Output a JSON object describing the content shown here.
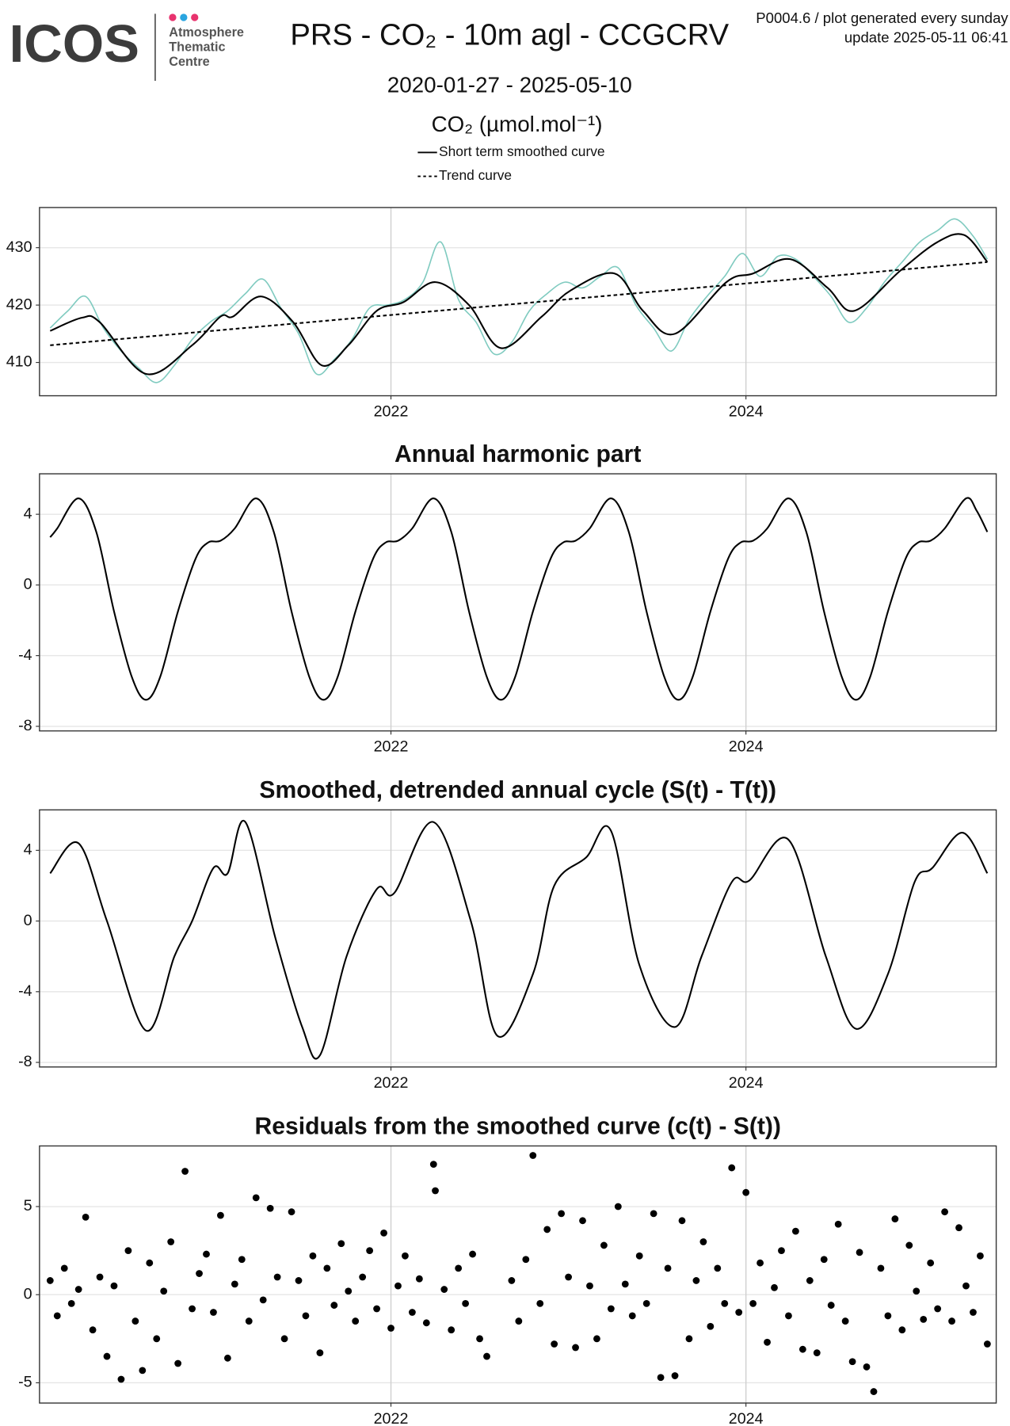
{
  "header": {
    "logo": "ICOS",
    "logo_lines": [
      "Atmosphere",
      "Thematic",
      "Centre"
    ],
    "title": "PRS - CO₂ - 10m agl - CCGCRV",
    "note": "P0004.6 / plot generated every sunday",
    "update": "update  2025-05-11 06:41",
    "period": "2020-01-27 - 2025-05-10",
    "unit": "CO₂ (µmol.mol⁻¹)"
  },
  "chart_data": [
    {
      "type": "line",
      "xlim": [
        2020.02,
        2025.41
      ],
      "xticks": [
        2022,
        2024
      ],
      "ylim": [
        404.2,
        437.0
      ],
      "yticks": [
        410,
        420,
        430
      ],
      "grid": true,
      "series": [
        {
          "color": "#80cbc0",
          "x": [
            2020.08,
            2020.18,
            2020.28,
            2020.38,
            2020.48,
            2020.58,
            2020.68,
            2020.78,
            2020.88,
            2020.98,
            2021.08,
            2021.18,
            2021.28,
            2021.38,
            2021.48,
            2021.58,
            2021.68,
            2021.78,
            2021.88,
            2021.98,
            2022.08,
            2022.18,
            2022.28,
            2022.38,
            2022.48,
            2022.58,
            2022.68,
            2022.78,
            2022.88,
            2022.98,
            2023.08,
            2023.18,
            2023.28,
            2023.38,
            2023.48,
            2023.58,
            2023.68,
            2023.78,
            2023.88,
            2023.98,
            2024.08,
            2024.18,
            2024.28,
            2024.38,
            2024.48,
            2024.58,
            2024.68,
            2024.78,
            2024.88,
            2024.98,
            2025.08,
            2025.18,
            2025.28,
            2025.36
          ],
          "values": [
            416,
            419,
            421.5,
            416,
            412,
            409,
            406.5,
            409.5,
            414,
            417,
            419,
            422,
            424.5,
            419.5,
            415,
            408,
            410.5,
            414,
            419.5,
            420,
            421,
            424,
            431,
            421,
            417,
            411.5,
            413.5,
            419,
            422,
            424,
            423,
            425,
            426.5,
            420,
            416,
            412,
            417.5,
            421.5,
            425,
            429,
            425,
            428.5,
            428,
            425,
            421.5,
            417,
            419.5,
            424,
            427.5,
            431,
            433,
            435,
            432,
            428
          ]
        },
        {
          "name": "Short term smoothed curve",
          "color": "#000000",
          "x": [
            2020.08,
            2020.26,
            2020.36,
            2020.62,
            2020.88,
            2021.04,
            2021.11,
            2021.27,
            2021.45,
            2021.61,
            2021.76,
            2021.92,
            2022.07,
            2022.25,
            2022.44,
            2022.62,
            2022.85,
            2023.01,
            2023.26,
            2023.42,
            2023.6,
            2023.89,
            2024.04,
            2024.25,
            2024.46,
            2024.61,
            2024.87,
            2025.08,
            2025.23,
            2025.36
          ],
          "values": [
            415.5,
            417.8,
            417,
            408,
            413,
            418,
            418,
            421.5,
            417,
            409.5,
            413,
            419,
            420.5,
            424,
            420,
            412.5,
            418,
            422.5,
            425.5,
            419,
            415,
            424,
            425.5,
            428,
            423,
            419,
            426,
            431,
            432.2,
            427.5
          ]
        },
        {
          "name": "Trend curve",
          "color": "#000000",
          "dash": true,
          "x": [
            2020.08,
            2025.36
          ],
          "values": [
            413,
            427.5
          ]
        }
      ]
    },
    {
      "type": "line",
      "title": "Annual harmonic part",
      "xlim": [
        2020.02,
        2025.41
      ],
      "xticks": [
        2022,
        2024
      ],
      "ylim": [
        -8.26,
        6.29
      ],
      "yticks": [
        -8,
        -4,
        0,
        4
      ],
      "grid": true,
      "series": [
        {
          "color": "#000000",
          "x": [
            2020.08,
            2020.12,
            2020.24,
            2020.34,
            2020.44,
            2020.54,
            2020.62,
            2020.7,
            2020.8,
            2020.9,
            2020.97,
            2021.04,
            2021.12,
            2021.24,
            2021.34,
            2021.44,
            2021.54,
            2021.62,
            2021.7,
            2021.8,
            2021.9,
            2021.97,
            2022.04,
            2022.12,
            2022.24,
            2022.34,
            2022.44,
            2022.54,
            2022.62,
            2022.7,
            2022.8,
            2022.9,
            2022.97,
            2023.04,
            2023.12,
            2023.24,
            2023.34,
            2023.44,
            2023.54,
            2023.62,
            2023.7,
            2023.8,
            2023.9,
            2023.97,
            2024.04,
            2024.12,
            2024.24,
            2024.34,
            2024.44,
            2024.54,
            2024.62,
            2024.7,
            2024.8,
            2024.9,
            2024.97,
            2025.04,
            2025.12,
            2025.24,
            2025.3,
            2025.36
          ],
          "values": [
            2.7,
            3.2,
            4.9,
            3.0,
            -1.5,
            -5.2,
            -6.5,
            -5.2,
            -1.5,
            1.5,
            2.4,
            2.5,
            3.2,
            4.9,
            3.0,
            -1.5,
            -5.2,
            -6.5,
            -5.2,
            -1.5,
            1.5,
            2.4,
            2.5,
            3.2,
            4.9,
            3.0,
            -1.5,
            -5.2,
            -6.5,
            -5.2,
            -1.5,
            1.5,
            2.4,
            2.5,
            3.2,
            4.9,
            3.0,
            -1.5,
            -5.2,
            -6.5,
            -5.2,
            -1.5,
            1.5,
            2.4,
            2.5,
            3.2,
            4.9,
            3.0,
            -1.5,
            -5.2,
            -6.5,
            -5.2,
            -1.5,
            1.5,
            2.4,
            2.5,
            3.2,
            4.9,
            4.2,
            3.0
          ]
        }
      ]
    },
    {
      "type": "line",
      "title": "Smoothed, detrended annual cycle (S(t) - T(t))",
      "xlim": [
        2020.02,
        2025.41
      ],
      "xticks": [
        2022,
        2024
      ],
      "ylim": [
        -8.26,
        6.29
      ],
      "yticks": [
        -8,
        -4,
        0,
        4
      ],
      "grid": true,
      "series": [
        {
          "color": "#000000",
          "x": [
            2020.08,
            2020.24,
            2020.4,
            2020.62,
            2020.78,
            2020.88,
            2021.0,
            2021.08,
            2021.18,
            2021.35,
            2021.5,
            2021.6,
            2021.75,
            2021.92,
            2022.02,
            2022.24,
            2022.45,
            2022.6,
            2022.8,
            2022.92,
            2023.1,
            2023.24,
            2023.4,
            2023.6,
            2023.75,
            2023.92,
            2024.02,
            2024.24,
            2024.45,
            2024.62,
            2024.8,
            2024.95,
            2025.05,
            2025.22,
            2025.36
          ],
          "values": [
            2.7,
            4.4,
            0,
            -6.2,
            -2,
            0,
            3,
            2.7,
            5.6,
            -1,
            -6,
            -7.6,
            -2,
            1.8,
            1.6,
            5.6,
            0,
            -6.5,
            -3,
            2,
            3.6,
            5.1,
            -2.5,
            -6,
            -2,
            2.2,
            2.3,
            4.6,
            -2,
            -6.1,
            -3,
            2.2,
            3,
            5,
            2.7
          ]
        }
      ]
    },
    {
      "type": "scatter",
      "title": "Residuals from the smoothed curve (c(t) - S(t))",
      "xlim": [
        2020.02,
        2025.41
      ],
      "xticks": [
        2022,
        2024
      ],
      "ylim": [
        -6.15,
        8.44
      ],
      "yticks": [
        -5,
        0,
        5
      ],
      "grid": true,
      "series": [
        {
          "color": "#000000",
          "x": [
            2020.08,
            2020.12,
            2020.16,
            2020.2,
            2020.24,
            2020.28,
            2020.32,
            2020.36,
            2020.4,
            2020.44,
            2020.48,
            2020.52,
            2020.56,
            2020.6,
            2020.64,
            2020.68,
            2020.72,
            2020.76,
            2020.8,
            2020.84,
            2020.88,
            2020.92,
            2020.96,
            2021.0,
            2021.04,
            2021.08,
            2021.12,
            2021.16,
            2021.2,
            2021.24,
            2021.28,
            2021.32,
            2021.36,
            2021.4,
            2021.44,
            2021.48,
            2021.52,
            2021.56,
            2021.6,
            2021.64,
            2021.68,
            2021.72,
            2021.76,
            2021.8,
            2021.84,
            2021.88,
            2021.92,
            2021.96,
            2022.0,
            2022.04,
            2022.08,
            2022.12,
            2022.16,
            2022.2,
            2022.24,
            2022.25,
            2022.3,
            2022.34,
            2022.38,
            2022.42,
            2022.46,
            2022.5,
            2022.54,
            2022.68,
            2022.72,
            2022.76,
            2022.8,
            2022.84,
            2022.88,
            2022.92,
            2022.96,
            2023.0,
            2023.04,
            2023.08,
            2023.12,
            2023.16,
            2023.2,
            2023.24,
            2023.28,
            2023.32,
            2023.36,
            2023.4,
            2023.44,
            2023.48,
            2023.52,
            2023.56,
            2023.6,
            2023.64,
            2023.68,
            2023.72,
            2023.76,
            2023.8,
            2023.84,
            2023.88,
            2023.92,
            2023.96,
            2024.0,
            2024.04,
            2024.08,
            2024.12,
            2024.16,
            2024.2,
            2024.24,
            2024.28,
            2024.32,
            2024.36,
            2024.4,
            2024.44,
            2024.48,
            2024.52,
            2024.56,
            2024.6,
            2024.64,
            2024.68,
            2024.72,
            2024.76,
            2024.8,
            2024.84,
            2024.88,
            2024.92,
            2024.96,
            2025.0,
            2025.04,
            2025.08,
            2025.12,
            2025.16,
            2025.2,
            2025.24,
            2025.28,
            2025.32,
            2025.36
          ],
          "values": [
            0.8,
            -1.2,
            1.5,
            -0.5,
            0.3,
            4.4,
            -2.0,
            1.0,
            -3.5,
            0.5,
            -4.8,
            2.5,
            -1.5,
            -4.3,
            1.8,
            -2.5,
            0.2,
            3.0,
            -3.9,
            7.0,
            -0.8,
            1.2,
            2.3,
            -1.0,
            4.5,
            -3.6,
            0.6,
            2.0,
            -1.5,
            5.5,
            -0.3,
            4.9,
            1.0,
            -2.5,
            4.7,
            0.8,
            -1.2,
            2.2,
            -3.3,
            1.5,
            -0.6,
            2.9,
            0.2,
            -1.5,
            1.0,
            2.5,
            -0.8,
            3.5,
            -1.9,
            0.5,
            2.2,
            -1.0,
            0.9,
            -1.6,
            7.4,
            5.9,
            0.3,
            -2.0,
            1.5,
            -0.5,
            2.3,
            -2.5,
            -3.5,
            0.8,
            -1.5,
            2.0,
            7.9,
            -0.5,
            3.7,
            -2.8,
            4.6,
            1.0,
            -3.0,
            4.2,
            0.5,
            -2.5,
            2.8,
            -0.8,
            5.0,
            0.6,
            -1.2,
            2.2,
            -0.5,
            4.6,
            -4.7,
            1.5,
            -4.6,
            4.2,
            -2.5,
            0.8,
            3.0,
            -1.8,
            1.5,
            -0.5,
            7.2,
            -1.0,
            5.8,
            -0.5,
            1.8,
            -2.7,
            0.4,
            2.5,
            -1.2,
            3.6,
            -3.1,
            0.8,
            -3.3,
            2.0,
            -0.6,
            4.0,
            -1.5,
            -3.8,
            2.4,
            -4.1,
            -5.5,
            1.5,
            -1.2,
            4.3,
            -2.0,
            2.8,
            0.2,
            -1.4,
            1.8,
            -0.8,
            4.7,
            -1.5,
            3.8,
            0.5,
            -1.0,
            2.2,
            -2.8
          ]
        }
      ]
    }
  ]
}
